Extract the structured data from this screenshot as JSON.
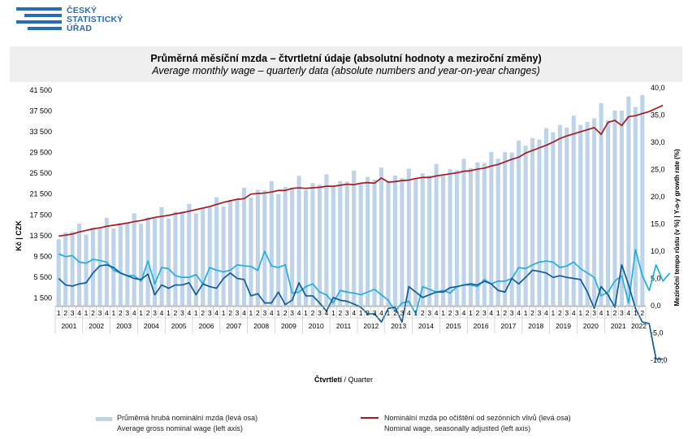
{
  "logo": {
    "line1": "ČESKÝ",
    "line2": "STATISTICKÝ",
    "line3": "ÚŘAD"
  },
  "title": {
    "cs": "Průměrná měsíční mzda – čtvrtletní údaje (absolutní hodnoty a meziroční změny)",
    "en": "Average monthly wage – quarterly data (absolute numbers and year-on-year changes)"
  },
  "legend": {
    "bar_cs": "Průměrná hrubá nominální mzda (levá osa)",
    "bar_en": "Average gross nominal wage (left axis)",
    "line_cs": "Nominální mzda po očištění od sezónních vlivů (levá osa)",
    "line_en": "Nominal wage, seasonally adjusted (left axis)"
  },
  "colors": {
    "bars": "#bcd3ea",
    "sa_line": "#a8191f",
    "growth_light": "#1fb0e0",
    "growth_dark": "#0e5d96"
  },
  "chart_data": {
    "type": "bar",
    "xlabel_cs": "Čtvrtletí",
    "xlabel_en": "Quarter",
    "ylabel": "Kč | CZK",
    "y2label": "Meziroční tempo růstu (v %) | Y-o-y growth rate (%)",
    "ylim": [
      0,
      41500
    ],
    "y2lim": [
      -10,
      40
    ],
    "yticks": [
      1500,
      5500,
      9500,
      13500,
      17500,
      21500,
      25500,
      29500,
      33500,
      37500,
      41500
    ],
    "yticks_labels": [
      "1 500",
      "5 500",
      "9 500",
      "13 500",
      "17 500",
      "21 500",
      "25 500",
      "29 500",
      "33 500",
      "37 500",
      "41 500"
    ],
    "y2ticks_labels": [
      "-10,0",
      "-5,0",
      "0,0",
      "5,0",
      "10,0",
      "15,0",
      "20,0",
      "25,0",
      "30,0",
      "35,0",
      "40,0"
    ],
    "years": [
      "2001",
      "2002",
      "2003",
      "2004",
      "2005",
      "2006",
      "2007",
      "2008",
      "2009",
      "2010",
      "2011",
      "2012",
      "2013",
      "2014",
      "2015",
      "2016",
      "2017",
      "2018",
      "2019",
      "2020",
      "2021",
      "2022"
    ],
    "quarter_labels": [
      "1",
      "2",
      "3",
      "4"
    ],
    "series": [
      {
        "name": "Průměrná hrubá nominální mzda (levá osa)",
        "axis": "left",
        "kind": "bar",
        "values": [
          12800,
          14100,
          14300,
          15800,
          13700,
          15000,
          15000,
          16900,
          14900,
          15900,
          16100,
          17800,
          15800,
          17000,
          17100,
          19000,
          16800,
          18100,
          18200,
          19600,
          17800,
          18900,
          19000,
          20900,
          19100,
          20400,
          20500,
          22700,
          20800,
          22300,
          22200,
          24000,
          21500,
          22900,
          22600,
          25000,
          22300,
          23600,
          23300,
          25300,
          22900,
          24000,
          23900,
          26000,
          23600,
          24800,
          24300,
          26600,
          24000,
          25100,
          24600,
          26400,
          24400,
          25500,
          25100,
          27300,
          25200,
          26300,
          26100,
          28300,
          26500,
          27600,
          27500,
          29600,
          28300,
          29600,
          29500,
          31800,
          30800,
          32300,
          32000,
          34200,
          33400,
          34800,
          34300,
          36600,
          34800,
          35400,
          36100,
          39000,
          35700,
          37600,
          37600,
          40300,
          38300,
          40600
        ]
      },
      {
        "name": "Nominální mzda po očištění od sezónních vlivů (levá osa)",
        "axis": "left",
        "kind": "line",
        "values": [
          13400,
          13600,
          13800,
          14200,
          14500,
          14800,
          15000,
          15300,
          15500,
          15700,
          15900,
          16200,
          16400,
          16700,
          17000,
          17200,
          17400,
          17700,
          17900,
          18200,
          18500,
          18800,
          19100,
          19500,
          19900,
          20200,
          20500,
          20600,
          21500,
          21600,
          21700,
          21900,
          22200,
          22200,
          22600,
          22700,
          22600,
          22700,
          22800,
          23000,
          23000,
          23200,
          23400,
          23300,
          23600,
          23700,
          23600,
          24600,
          23800,
          23900,
          24100,
          24200,
          24500,
          24700,
          24700,
          25000,
          25200,
          25400,
          25600,
          25900,
          26000,
          26300,
          26500,
          26900,
          27200,
          27700,
          28200,
          28600,
          29400,
          29900,
          30400,
          30900,
          31500,
          32200,
          32700,
          33100,
          33500,
          33900,
          34300,
          33000,
          35300,
          35700,
          34700,
          36400,
          36600,
          37000,
          37400,
          38000,
          38600
        ]
      },
      {
        "name": "",
        "axis": "right",
        "kind": "line",
        "values": [
          9.5,
          9.0,
          9.2,
          8.0,
          7.8,
          8.5,
          8.3,
          8.0,
          6.5,
          6.0,
          5.5,
          5.5,
          4.5,
          8.2,
          4.0,
          7.0,
          6.8,
          5.5,
          5.2,
          5.2,
          5.7,
          4.0,
          7.0,
          6.5,
          6.2,
          6.5,
          7.5,
          7.3,
          7.2,
          6.5,
          10.0,
          7.3,
          7.0,
          7.5,
          2.3,
          2.5,
          3.5,
          4.0,
          2.5,
          2.0,
          0.5,
          2.8,
          2.5,
          2.3,
          2.0,
          2.5,
          3.0,
          2.0,
          1.0,
          -1.0,
          0.5,
          0.8,
          -1.5,
          3.5,
          3.0,
          2.5,
          2.8,
          2.3,
          3.5,
          3.8,
          3.8,
          3.5,
          4.8,
          4.0,
          4.5,
          4.5,
          5.0,
          7.0,
          6.8,
          7.5,
          8.0,
          8.2,
          8.0,
          7.0,
          7.3,
          8.0,
          6.8,
          6.0,
          5.2,
          1.8,
          2.5,
          4.5,
          5.5,
          0.5,
          10.3,
          5.5,
          2.8,
          7.5,
          4.5,
          6.0
        ]
      },
      {
        "name": "",
        "axis": "right",
        "kind": "line",
        "values": [
          5.0,
          3.8,
          3.6,
          4.0,
          4.2,
          6.0,
          7.3,
          7.5,
          7.0,
          6.0,
          5.5,
          5.0,
          4.8,
          5.8,
          2.0,
          3.8,
          3.2,
          3.8,
          3.8,
          4.2,
          2.0,
          4.0,
          3.5,
          3.2,
          5.0,
          6.0,
          5.0,
          4.8,
          1.8,
          2.2,
          0.5,
          0.5,
          2.5,
          0.2,
          1.0,
          4.2,
          1.8,
          1.8,
          0.5,
          -1.0,
          1.5,
          1.0,
          0.8,
          0.3,
          -0.3,
          -1.5,
          -1.5,
          -3.0,
          -0.5,
          -0.3,
          -3.0,
          3.5,
          2.5,
          1.5,
          2.0,
          2.5,
          2.5,
          3.3,
          3.5,
          3.8,
          4.0,
          3.8,
          4.5,
          4.0,
          2.8,
          2.5,
          5.0,
          4.0,
          5.2,
          6.5,
          6.3,
          6.0,
          5.2,
          5.5,
          5.2,
          5.0,
          4.8,
          2.5,
          -0.5,
          3.5,
          2.0,
          -0.3,
          7.5,
          3.8,
          -0.5,
          -3.0,
          -3.3,
          -9.8,
          -9.8
        ]
      }
    ],
    "legend_position": "bottom",
    "grid": false
  }
}
